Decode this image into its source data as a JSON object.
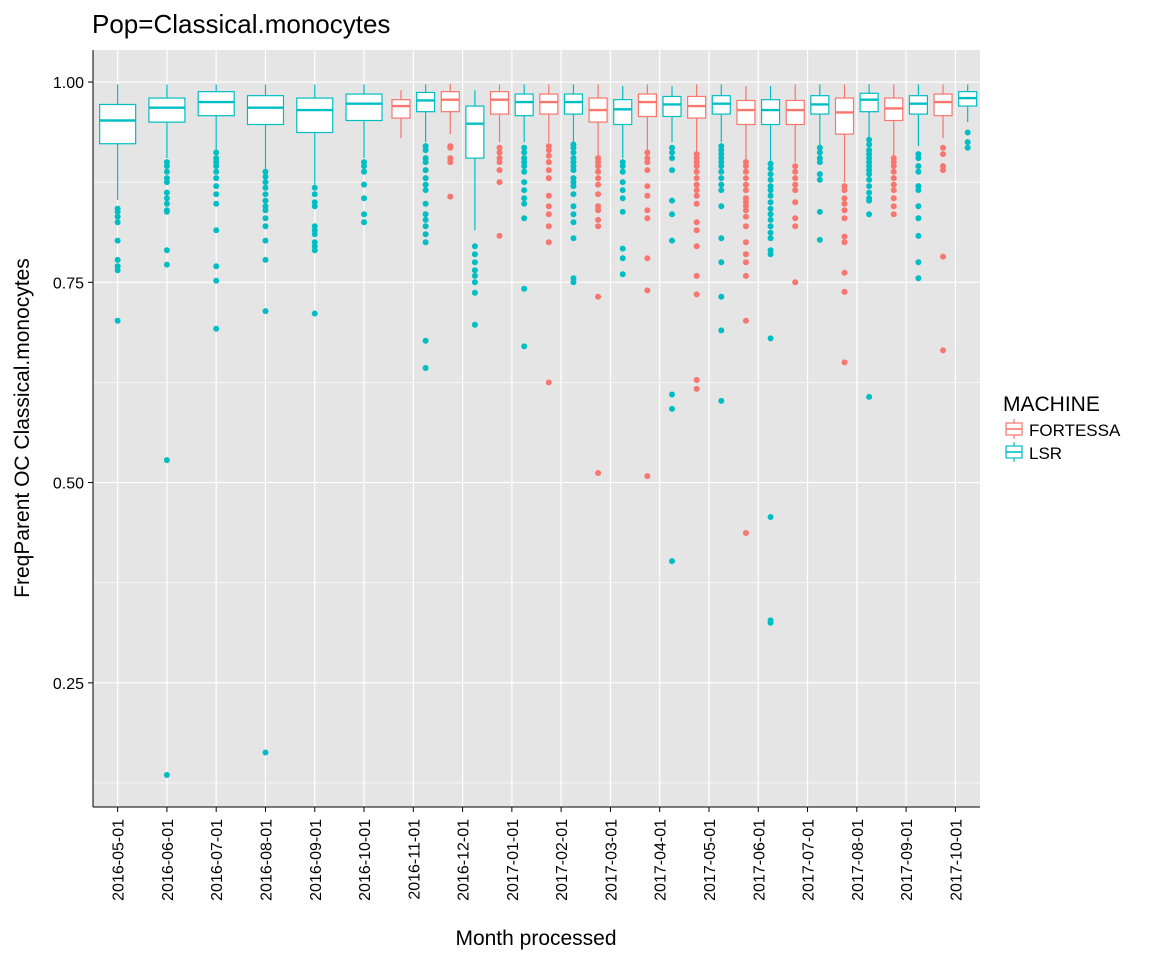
{
  "chart_data": {
    "type": "box",
    "title": "Pop=Classical.monocytes",
    "xlabel": "Month processed",
    "ylabel": "FreqParent OC  Classical.monocytes",
    "ylim": [
      0.095,
      1.04
    ],
    "yticks": [
      0.25,
      0.5,
      0.75,
      1.0
    ],
    "ytick_labels": [
      "0.25",
      "0.50",
      "0.75",
      "1.00"
    ],
    "grid": true,
    "legend": {
      "title": "MACHINE",
      "position": "right",
      "entries": [
        "FORTESSA",
        "LSR"
      ]
    },
    "colors": {
      "FORTESSA": "#F8766D",
      "LSR": "#00BFC4",
      "panel": "#E5E5E5",
      "grid": "#FFFFFF"
    },
    "categories": [
      "2016-05-01",
      "2016-06-01",
      "2016-07-01",
      "2016-08-01",
      "2016-09-01",
      "2016-10-01",
      "2016-11-01",
      "2016-12-01",
      "2017-01-01",
      "2017-02-01",
      "2017-03-01",
      "2017-04-01",
      "2017-05-01",
      "2017-06-01",
      "2017-07-01",
      "2017-08-01",
      "2017-09-01",
      "2017-10-01"
    ],
    "series": [
      {
        "name": "FORTESSA",
        "boxes": [
          null,
          null,
          null,
          null,
          null,
          null,
          {
            "low": 0.93,
            "q1": 0.955,
            "median": 0.97,
            "q3": 0.978,
            "high": 0.99,
            "outliers": []
          },
          {
            "low": 0.935,
            "q1": 0.963,
            "median": 0.978,
            "q3": 0.988,
            "high": 0.998,
            "outliers": [
              0.92,
              0.918,
              0.905,
              0.9,
              0.857
            ]
          },
          {
            "low": 0.925,
            "q1": 0.96,
            "median": 0.978,
            "q3": 0.988,
            "high": 0.997,
            "outliers": [
              0.918,
              0.912,
              0.905,
              0.9,
              0.89,
              0.875,
              0.808
            ]
          },
          {
            "low": 0.925,
            "q1": 0.96,
            "median": 0.975,
            "q3": 0.985,
            "high": 0.997,
            "outliers": [
              0.92,
              0.915,
              0.908,
              0.9,
              0.89,
              0.88,
              0.858,
              0.845,
              0.835,
              0.82,
              0.8,
              0.625
            ]
          },
          {
            "low": 0.905,
            "q1": 0.95,
            "median": 0.965,
            "q3": 0.98,
            "high": 0.997,
            "outliers": [
              0.905,
              0.9,
              0.895,
              0.888,
              0.88,
              0.872,
              0.86,
              0.845,
              0.84,
              0.828,
              0.82,
              0.732,
              0.512
            ]
          },
          {
            "low": 0.915,
            "q1": 0.957,
            "median": 0.975,
            "q3": 0.985,
            "high": 0.997,
            "outliers": [
              0.912,
              0.905,
              0.9,
              0.89,
              0.87,
              0.858,
              0.84,
              0.83,
              0.78,
              0.74,
              0.508
            ]
          },
          {
            "low": 0.91,
            "q1": 0.955,
            "median": 0.97,
            "q3": 0.982,
            "high": 0.997,
            "outliers": [
              0.91,
              0.905,
              0.9,
              0.895,
              0.888,
              0.88,
              0.872,
              0.865,
              0.858,
              0.848,
              0.825,
              0.815,
              0.795,
              0.758,
              0.735,
              0.628,
              0.617
            ]
          },
          {
            "low": 0.9,
            "q1": 0.947,
            "median": 0.965,
            "q3": 0.977,
            "high": 0.995,
            "outliers": [
              0.9,
              0.895,
              0.888,
              0.88,
              0.872,
              0.865,
              0.855,
              0.85,
              0.845,
              0.84,
              0.832,
              0.82,
              0.8,
              0.785,
              0.775,
              0.758,
              0.702,
              0.437
            ]
          },
          {
            "low": 0.9,
            "q1": 0.947,
            "median": 0.965,
            "q3": 0.977,
            "high": 0.997,
            "outliers": [
              0.895,
              0.888,
              0.88,
              0.872,
              0.865,
              0.85,
              0.83,
              0.82,
              0.75
            ]
          },
          {
            "low": 0.875,
            "q1": 0.935,
            "median": 0.962,
            "q3": 0.98,
            "high": 0.997,
            "outliers": [
              0.87,
              0.865,
              0.855,
              0.848,
              0.84,
              0.83,
              0.807,
              0.8,
              0.762,
              0.738,
              0.65
            ]
          },
          {
            "low": 0.905,
            "q1": 0.952,
            "median": 0.967,
            "q3": 0.98,
            "high": 0.997,
            "outliers": [
              0.905,
              0.9,
              0.895,
              0.888,
              0.88,
              0.872,
              0.865,
              0.855,
              0.845,
              0.835
            ]
          },
          {
            "low": 0.93,
            "q1": 0.958,
            "median": 0.975,
            "q3": 0.985,
            "high": 0.997,
            "outliers": [
              0.918,
              0.91,
              0.895,
              0.89,
              0.782,
              0.665
            ]
          }
        ]
      },
      {
        "name": "LSR",
        "boxes": [
          {
            "low": 0.853,
            "q1": 0.923,
            "median": 0.952,
            "q3": 0.972,
            "high": 0.997,
            "outliers": [
              0.842,
              0.838,
              0.832,
              0.825,
              0.802,
              0.778,
              0.77,
              0.765,
              0.702
            ]
          },
          {
            "low": 0.905,
            "q1": 0.95,
            "median": 0.968,
            "q3": 0.98,
            "high": 0.997,
            "outliers": [
              0.9,
              0.895,
              0.888,
              0.88,
              0.875,
              0.862,
              0.855,
              0.848,
              0.84,
              0.838,
              0.79,
              0.772,
              0.528,
              0.135
            ]
          },
          {
            "low": 0.915,
            "q1": 0.958,
            "median": 0.975,
            "q3": 0.988,
            "high": 0.997,
            "outliers": [
              0.912,
              0.905,
              0.9,
              0.895,
              0.888,
              0.88,
              0.87,
              0.86,
              0.848,
              0.815,
              0.77,
              0.752,
              0.692
            ]
          },
          {
            "low": 0.89,
            "q1": 0.947,
            "median": 0.968,
            "q3": 0.983,
            "high": 0.997,
            "outliers": [
              0.888,
              0.882,
              0.875,
              0.868,
              0.86,
              0.852,
              0.845,
              0.84,
              0.83,
              0.82,
              0.802,
              0.778,
              0.714,
              0.163
            ]
          },
          {
            "low": 0.872,
            "q1": 0.937,
            "median": 0.965,
            "q3": 0.98,
            "high": 0.997,
            "outliers": [
              0.868,
              0.86,
              0.85,
              0.845,
              0.82,
              0.815,
              0.81,
              0.8,
              0.795,
              0.79,
              0.711
            ]
          },
          {
            "low": 0.905,
            "q1": 0.952,
            "median": 0.973,
            "q3": 0.985,
            "high": 0.997,
            "outliers": [
              0.9,
              0.895,
              0.888,
              0.872,
              0.855,
              0.835,
              0.825
            ]
          },
          {
            "low": 0.925,
            "q1": 0.963,
            "median": 0.977,
            "q3": 0.987,
            "high": 0.997,
            "outliers": [
              0.92,
              0.915,
              0.905,
              0.9,
              0.89,
              0.88,
              0.872,
              0.865,
              0.848,
              0.835,
              0.828,
              0.82,
              0.81,
              0.8,
              0.677,
              0.643
            ]
          },
          {
            "low": 0.815,
            "q1": 0.905,
            "median": 0.948,
            "q3": 0.97,
            "high": 0.99,
            "outliers": [
              0.795,
              0.785,
              0.775,
              0.765,
              0.758,
              0.75,
              0.737,
              0.697
            ]
          },
          {
            "low": 0.925,
            "q1": 0.958,
            "median": 0.975,
            "q3": 0.985,
            "high": 0.997,
            "outliers": [
              0.918,
              0.912,
              0.905,
              0.9,
              0.895,
              0.888,
              0.875,
              0.865,
              0.855,
              0.848,
              0.83,
              0.742,
              0.67
            ]
          },
          {
            "low": 0.925,
            "q1": 0.96,
            "median": 0.975,
            "q3": 0.985,
            "high": 0.997,
            "outliers": [
              0.922,
              0.918,
              0.912,
              0.905,
              0.9,
              0.895,
              0.89,
              0.88,
              0.875,
              0.87,
              0.86,
              0.845,
              0.835,
              0.825,
              0.805,
              0.755,
              0.75
            ]
          },
          {
            "low": 0.905,
            "q1": 0.947,
            "median": 0.966,
            "q3": 0.978,
            "high": 0.995,
            "outliers": [
              0.9,
              0.895,
              0.888,
              0.875,
              0.865,
              0.855,
              0.838,
              0.792,
              0.78,
              0.76
            ]
          },
          {
            "low": 0.925,
            "q1": 0.957,
            "median": 0.972,
            "q3": 0.982,
            "high": 0.995,
            "outliers": [
              0.918,
              0.912,
              0.905,
              0.89,
              0.852,
              0.835,
              0.802,
              0.61,
              0.592,
              0.402
            ]
          },
          {
            "low": 0.925,
            "q1": 0.96,
            "median": 0.973,
            "q3": 0.983,
            "high": 0.997,
            "outliers": [
              0.92,
              0.915,
              0.91,
              0.905,
              0.9,
              0.895,
              0.888,
              0.88,
              0.872,
              0.865,
              0.845,
              0.805,
              0.775,
              0.732,
              0.69,
              0.602
            ]
          },
          {
            "low": 0.9,
            "q1": 0.947,
            "median": 0.965,
            "q3": 0.978,
            "high": 0.995,
            "outliers": [
              0.898,
              0.892,
              0.885,
              0.878,
              0.87,
              0.865,
              0.858,
              0.85,
              0.842,
              0.835,
              0.828,
              0.82,
              0.812,
              0.805,
              0.79,
              0.785,
              0.68,
              0.457,
              0.328,
              0.325
            ]
          },
          {
            "low": 0.92,
            "q1": 0.96,
            "median": 0.972,
            "q3": 0.983,
            "high": 0.997,
            "outliers": [
              0.918,
              0.912,
              0.905,
              0.9,
              0.885,
              0.878,
              0.838,
              0.803
            ]
          },
          {
            "low": 0.93,
            "q1": 0.963,
            "median": 0.978,
            "q3": 0.986,
            "high": 0.997,
            "outliers": [
              0.928,
              0.922,
              0.915,
              0.91,
              0.905,
              0.9,
              0.895,
              0.89,
              0.885,
              0.878,
              0.87,
              0.862,
              0.855,
              0.852,
              0.835,
              0.607
            ]
          },
          {
            "low": 0.92,
            "q1": 0.96,
            "median": 0.973,
            "q3": 0.983,
            "high": 0.997,
            "outliers": [
              0.91,
              0.905,
              0.895,
              0.888,
              0.87,
              0.865,
              0.845,
              0.83,
              0.808,
              0.775,
              0.755
            ]
          },
          {
            "low": 0.95,
            "q1": 0.97,
            "median": 0.98,
            "q3": 0.988,
            "high": 0.997,
            "outliers": [
              0.937,
              0.925,
              0.918
            ]
          }
        ]
      }
    ]
  }
}
